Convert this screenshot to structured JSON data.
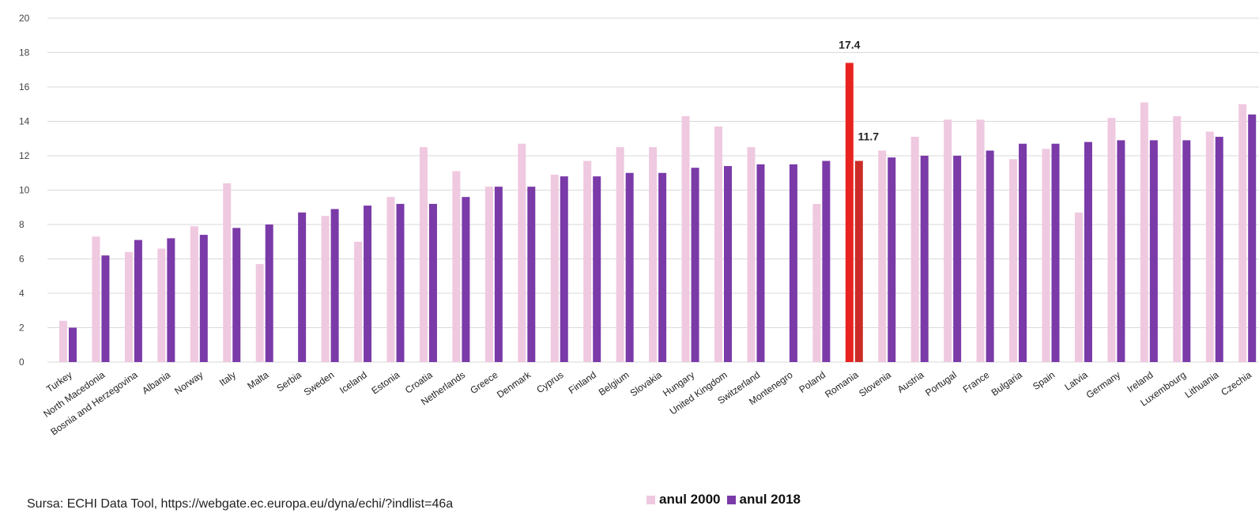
{
  "chart_data": {
    "type": "bar",
    "title": "",
    "xlabel": "",
    "ylabel": "",
    "ylim": [
      0,
      20
    ],
    "yticks": [
      0,
      2,
      4,
      6,
      8,
      10,
      12,
      14,
      16,
      18,
      20
    ],
    "grid": true,
    "legend_position": "bottom",
    "categories": [
      "Turkey",
      "North Macedonia",
      "Bosnia and Herzegovina",
      "Albania",
      "Norway",
      "Italy",
      "Malta",
      "Serbia",
      "Sweden",
      "Iceland",
      "Estonia",
      "Croatia",
      "Netherlands",
      "Greece",
      "Denmark",
      "Cyprus",
      "Finland",
      "Belgium",
      "Slovakia",
      "Hungary",
      "United Kingdom",
      "Switzerland",
      "Montenegro",
      "Poland",
      "Romania",
      "Slovenia",
      "Austria",
      "Portugal",
      "France",
      "Bulgaria",
      "Spain",
      "Latvia",
      "Germany",
      "Ireland",
      "Luxembourg",
      "Lithuania",
      "Czechia"
    ],
    "series": [
      {
        "name": "anul 2000",
        "color": "#efc9e0",
        "values": [
          2.4,
          7.3,
          6.4,
          6.6,
          7.9,
          10.4,
          5.7,
          null,
          8.5,
          7.0,
          9.6,
          12.5,
          11.1,
          10.2,
          12.7,
          10.9,
          11.7,
          12.5,
          12.5,
          14.3,
          13.7,
          12.5,
          null,
          9.2,
          17.4,
          12.3,
          13.1,
          14.1,
          14.1,
          11.8,
          12.4,
          8.7,
          14.2,
          15.1,
          14.3,
          13.4,
          15.0
        ]
      },
      {
        "name": "anul 2018",
        "color": "#7a3aa8",
        "values": [
          2.0,
          6.2,
          7.1,
          7.2,
          7.4,
          7.8,
          8.0,
          8.7,
          8.9,
          9.1,
          9.2,
          9.2,
          9.6,
          10.2,
          10.2,
          10.8,
          10.8,
          11.0,
          11.0,
          11.3,
          11.4,
          11.5,
          11.5,
          11.7,
          11.7,
          11.9,
          12.0,
          12.0,
          12.3,
          12.7,
          12.7,
          12.8,
          12.9,
          12.9,
          12.9,
          13.1,
          14.4
        ]
      }
    ],
    "highlight": {
      "category": "Romania",
      "color_2000": "#e8231f",
      "color_2018": "#cc2a26",
      "labels": [
        "17.4",
        "11.7"
      ]
    },
    "legend": [
      "anul 2000",
      "anul 2018"
    ],
    "source": "Sursa: ECHI Data Tool, https://webgate.ec.europa.eu/dyna/echi/?indlist=46a"
  }
}
